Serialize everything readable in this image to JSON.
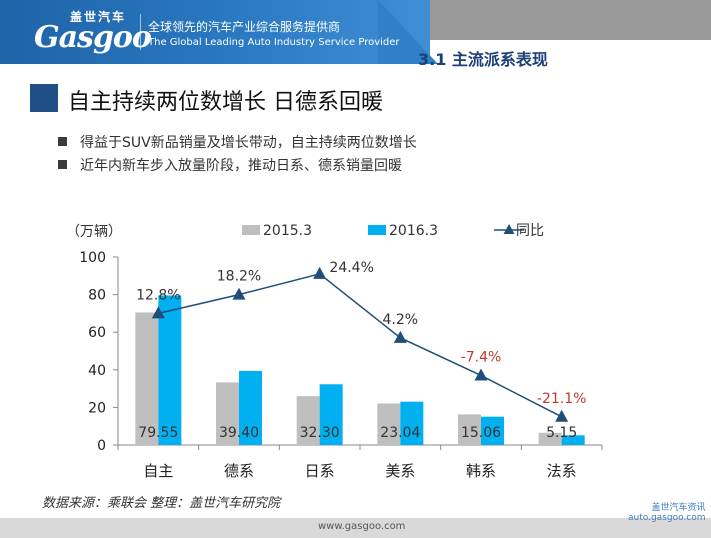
{
  "header": {
    "logo_cn": "盖世汽车",
    "logo_en": "Gasgoo",
    "tagline_cn": "全球领先的汽车产业综合服务提供商",
    "tagline_en": "The Global Leading Auto Industry Service Provider",
    "section": "3.1  主流派系表现"
  },
  "title": "自主持续两位数增长 日德系回暖",
  "bullets": [
    "得益于SUV新品销量及增长带动，自主持续两位数增长",
    "近年内新车步入放量阶段，推动日系、德系销量回暖"
  ],
  "footer": {
    "source": "数据来源：乘联会    整理：盖世汽车研究院",
    "url": "www.gasgoo.com",
    "brand_cn": "盖世汽车资讯",
    "brand_url": "auto.gasgoo.com"
  },
  "colors": {
    "series_2015": "#bfbfbf",
    "series_2016": "#00b0f0",
    "line": "#1f4e79",
    "negative_label": "#c0392b"
  },
  "chart_data": {
    "type": "bar",
    "unit_label": "（万辆）",
    "categories": [
      "自主",
      "德系",
      "日系",
      "美系",
      "韩系",
      "法系"
    ],
    "ylim": [
      0,
      100
    ],
    "yticks": [
      0,
      20,
      40,
      60,
      80,
      100
    ],
    "series": [
      {
        "name": "2015.3",
        "values": [
          70.5,
          33.3,
          26.0,
          22.1,
          16.3,
          6.5
        ]
      },
      {
        "name": "2016.3",
        "values": [
          79.55,
          39.4,
          32.3,
          23.04,
          15.06,
          5.15
        ]
      }
    ],
    "value_labels": [
      "79.55",
      "39.40",
      "32.30",
      "23.04",
      "15.06",
      "5.15"
    ],
    "line_series": {
      "name": "同比",
      "display_values": [
        70,
        80,
        91,
        57,
        37,
        15
      ],
      "labels": [
        "12.8%",
        "18.2%",
        "24.4%",
        "4.2%",
        "-7.4%",
        "-21.1%"
      ]
    },
    "legend_position": "top"
  }
}
